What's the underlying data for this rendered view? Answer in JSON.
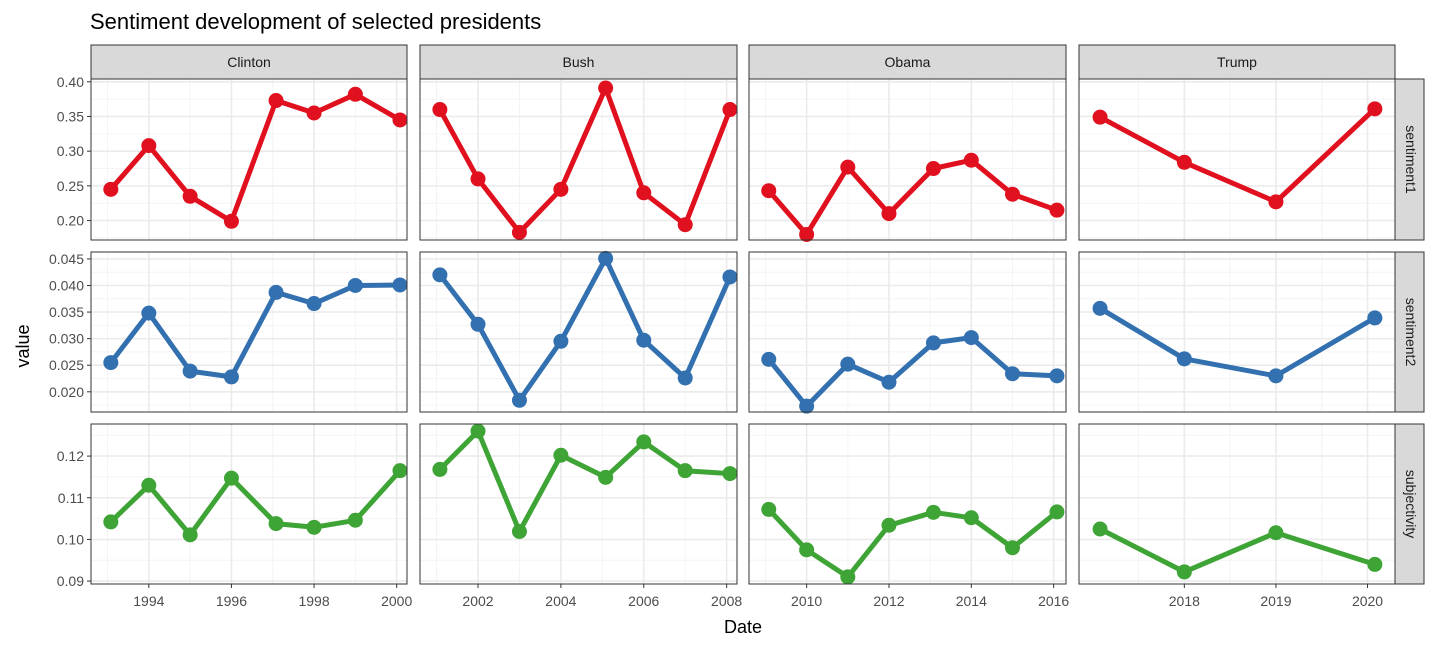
{
  "chart_data": {
    "type": "line",
    "title": "Sentiment development of selected presidents",
    "xlabel": "Date",
    "ylabel": "value",
    "grid": true,
    "legend": "none",
    "facets": {
      "columns": [
        "Clinton",
        "Bush",
        "Obama",
        "Trump"
      ],
      "rows": [
        "sentiment1",
        "sentiment2",
        "subjectivity"
      ]
    },
    "colors": {
      "sentiment1": "#e0101e",
      "sentiment2": "#3270b0",
      "subjectivity": "#3ea435",
      "strip_fill": "#d9d9d9",
      "panel_border": "#333333",
      "grid_major": "#ebebeb",
      "grid_minor": "#f4f4f4"
    },
    "x_axes": {
      "Clinton": {
        "lim": [
          1992.6,
          2000.25
        ],
        "ticks": [
          1994,
          1996,
          1998,
          2000
        ],
        "labels": [
          "1994",
          "1996",
          "1998",
          "2000"
        ]
      },
      "Bush": {
        "lim": [
          2000.6,
          2008.25
        ],
        "ticks": [
          2002,
          2004,
          2006,
          2008
        ],
        "labels": [
          "2002",
          "2004",
          "2006",
          "2008"
        ]
      },
      "Obama": {
        "lim": [
          2008.6,
          2016.3
        ],
        "ticks": [
          2010,
          2012,
          2014,
          2016
        ],
        "labels": [
          "2010",
          "2012",
          "2014",
          "2016"
        ]
      },
      "Trump": {
        "lim": [
          2016.85,
          2020.3
        ],
        "ticks": [
          2018,
          2019,
          2020
        ],
        "labels": [
          "2018",
          "2019",
          "2020"
        ]
      }
    },
    "y_axes": {
      "sentiment1": {
        "lim": [
          0.172,
          0.404
        ],
        "ticks": [
          0.2,
          0.25,
          0.3,
          0.35,
          0.4
        ],
        "labels": [
          "0.20",
          "0.25",
          "0.30",
          "0.35",
          "0.40"
        ]
      },
      "sentiment2": {
        "lim": [
          0.0162,
          0.0463
        ],
        "ticks": [
          0.02,
          0.025,
          0.03,
          0.035,
          0.04,
          0.045
        ],
        "labels": [
          "0.020",
          "0.025",
          "0.030",
          "0.035",
          "0.040",
          "0.045"
        ]
      },
      "subjectivity": {
        "lim": [
          0.0893,
          0.1277
        ],
        "ticks": [
          0.09,
          0.1,
          0.11,
          0.12
        ],
        "labels": [
          "0.09",
          "0.10",
          "0.11",
          "0.12"
        ]
      }
    },
    "series": [
      {
        "row": "sentiment1",
        "col": "Clinton",
        "x": [
          1993.08,
          1994.0,
          1995.0,
          1996.0,
          1997.08,
          1998.0,
          1999.0,
          2000.08
        ],
        "y": [
          0.245,
          0.308,
          0.235,
          0.199,
          0.373,
          0.355,
          0.382,
          0.345
        ]
      },
      {
        "row": "sentiment1",
        "col": "Bush",
        "x": [
          2001.08,
          2002.0,
          2003.0,
          2004.0,
          2005.08,
          2006.0,
          2007.0,
          2008.08
        ],
        "y": [
          0.36,
          0.26,
          0.183,
          0.245,
          0.391,
          0.24,
          0.194,
          0.36
        ]
      },
      {
        "row": "sentiment1",
        "col": "Obama",
        "x": [
          2009.08,
          2010.0,
          2011.0,
          2012.0,
          2013.08,
          2014.0,
          2015.0,
          2016.08
        ],
        "y": [
          0.243,
          0.18,
          0.277,
          0.21,
          0.275,
          0.287,
          0.238,
          0.215
        ]
      },
      {
        "row": "sentiment1",
        "col": "Trump",
        "x": [
          2017.08,
          2018.0,
          2019.0,
          2020.08
        ],
        "y": [
          0.349,
          0.284,
          0.227,
          0.361
        ]
      },
      {
        "row": "sentiment2",
        "col": "Clinton",
        "x": [
          1993.08,
          1994.0,
          1995.0,
          1996.0,
          1997.08,
          1998.0,
          1999.0,
          2000.08
        ],
        "y": [
          0.0255,
          0.0348,
          0.0239,
          0.0228,
          0.0387,
          0.0366,
          0.04,
          0.0401
        ]
      },
      {
        "row": "sentiment2",
        "col": "Bush",
        "x": [
          2001.08,
          2002.0,
          2003.0,
          2004.0,
          2005.08,
          2006.0,
          2007.0,
          2008.08
        ],
        "y": [
          0.042,
          0.0327,
          0.0184,
          0.0295,
          0.0451,
          0.0297,
          0.0226,
          0.0416
        ]
      },
      {
        "row": "sentiment2",
        "col": "Obama",
        "x": [
          2009.08,
          2010.0,
          2011.0,
          2012.0,
          2013.08,
          2014.0,
          2015.0,
          2016.08
        ],
        "y": [
          0.0261,
          0.0173,
          0.0252,
          0.0218,
          0.0292,
          0.0302,
          0.0234,
          0.023
        ]
      },
      {
        "row": "sentiment2",
        "col": "Trump",
        "x": [
          2017.08,
          2018.0,
          2019.0,
          2020.08
        ],
        "y": [
          0.0357,
          0.0262,
          0.023,
          0.0339
        ]
      },
      {
        "row": "subjectivity",
        "col": "Clinton",
        "x": [
          1993.08,
          1994.0,
          1995.0,
          1996.0,
          1997.08,
          1998.0,
          1999.0,
          2000.08
        ],
        "y": [
          0.1042,
          0.113,
          0.1011,
          0.1147,
          0.1038,
          0.1029,
          0.1046,
          0.1165
        ]
      },
      {
        "row": "subjectivity",
        "col": "Bush",
        "x": [
          2001.08,
          2002.0,
          2003.0,
          2004.0,
          2005.08,
          2006.0,
          2007.0,
          2008.08
        ],
        "y": [
          0.1168,
          0.126,
          0.1019,
          0.1202,
          0.1149,
          0.1234,
          0.1165,
          0.1158
        ]
      },
      {
        "row": "subjectivity",
        "col": "Obama",
        "x": [
          2009.08,
          2010.0,
          2011.0,
          2012.0,
          2013.08,
          2014.0,
          2015.0,
          2016.08
        ],
        "y": [
          0.1072,
          0.0975,
          0.091,
          0.1034,
          0.1065,
          0.1052,
          0.098,
          0.1066
        ]
      },
      {
        "row": "subjectivity",
        "col": "Trump",
        "x": [
          2017.08,
          2018.0,
          2019.0,
          2020.08
        ],
        "y": [
          0.1025,
          0.0922,
          0.1016,
          0.094
        ]
      }
    ]
  }
}
